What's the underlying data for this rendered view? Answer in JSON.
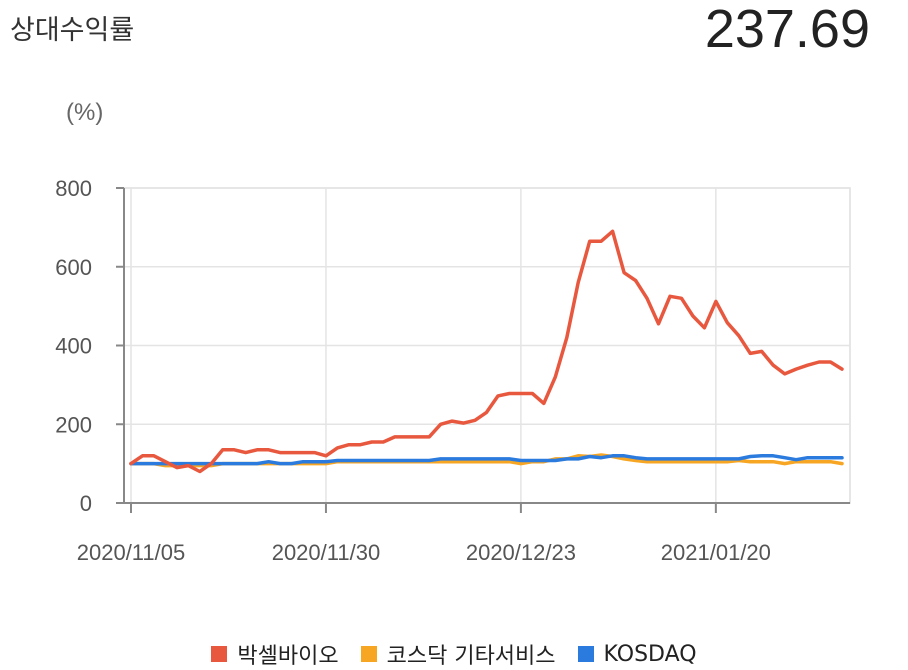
{
  "header": {
    "title": "상대수익률",
    "value": "237.69"
  },
  "chart_data": {
    "type": "line",
    "ylabel": "(%)",
    "ylim": [
      0,
      800
    ],
    "yticks": [
      0,
      200,
      400,
      600,
      800
    ],
    "x_tick_labels": [
      "2020/11/05",
      "2020/11/30",
      "2020/12/23",
      "2021/01/20"
    ],
    "x_tick_index": [
      0,
      17,
      34,
      51
    ],
    "grid": true,
    "legend_position": "bottom",
    "series": [
      {
        "name": "박셀바이오",
        "color": "#e8583f",
        "values": [
          100,
          120,
          120,
          105,
          90,
          95,
          80,
          100,
          135,
          135,
          128,
          135,
          135,
          128,
          128,
          128,
          128,
          120,
          140,
          148,
          148,
          155,
          155,
          168,
          168,
          168,
          168,
          200,
          208,
          203,
          210,
          230,
          272,
          278,
          278,
          278,
          253,
          320,
          420,
          560,
          665,
          665,
          690,
          585,
          565,
          520,
          455,
          525,
          520,
          475,
          445,
          512,
          458,
          425,
          380,
          385,
          350,
          328,
          340,
          350,
          358,
          358,
          340
        ]
      },
      {
        "name": "코스닥 기타서비스",
        "color": "#f7a623",
        "values": [
          100,
          100,
          100,
          95,
          95,
          95,
          95,
          95,
          100,
          100,
          100,
          100,
          100,
          100,
          100,
          100,
          100,
          100,
          105,
          105,
          105,
          105,
          105,
          105,
          105,
          105,
          105,
          105,
          105,
          105,
          105,
          105,
          105,
          105,
          100,
          105,
          105,
          112,
          112,
          120,
          118,
          122,
          118,
          112,
          108,
          105,
          105,
          105,
          105,
          105,
          105,
          105,
          105,
          108,
          105,
          105,
          105,
          100,
          105,
          105,
          105,
          105,
          100
        ]
      },
      {
        "name": "KOSDAQ",
        "color": "#2b7bde",
        "values": [
          100,
          100,
          100,
          100,
          100,
          100,
          100,
          100,
          100,
          100,
          100,
          100,
          105,
          100,
          100,
          105,
          105,
          105,
          108,
          108,
          108,
          108,
          108,
          108,
          108,
          108,
          108,
          112,
          112,
          112,
          112,
          112,
          112,
          112,
          108,
          108,
          108,
          108,
          112,
          112,
          118,
          115,
          120,
          120,
          115,
          112,
          112,
          112,
          112,
          112,
          112,
          112,
          112,
          112,
          118,
          120,
          120,
          115,
          110,
          115,
          115,
          115,
          115
        ]
      }
    ]
  }
}
